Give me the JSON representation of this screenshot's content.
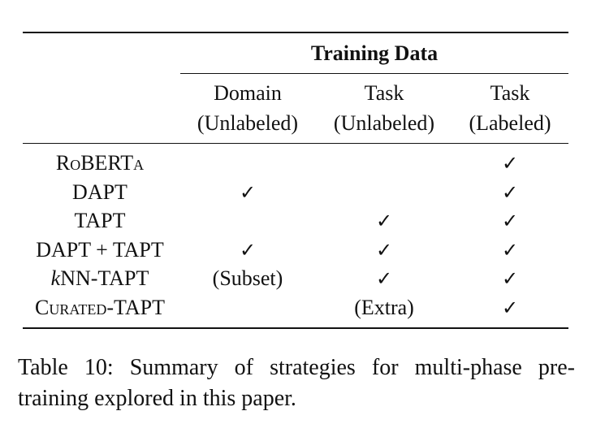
{
  "table": {
    "group_header": "Training Data",
    "columns": [
      {
        "line1": "Domain",
        "line2": "(Unlabeled)"
      },
      {
        "line1": "Task",
        "line2": "(Unlabeled)"
      },
      {
        "line1": "Task",
        "line2": "(Labeled)"
      }
    ],
    "rows": [
      {
        "label": "RoBERTa",
        "cells": [
          "",
          "",
          "✓"
        ]
      },
      {
        "label": "DAPT",
        "cells": [
          "✓",
          "",
          "✓"
        ]
      },
      {
        "label": "TAPT",
        "cells": [
          "",
          "✓",
          "✓"
        ]
      },
      {
        "label": "DAPT + TAPT",
        "cells": [
          "✓",
          "✓",
          "✓"
        ]
      },
      {
        "label_prefix": "k",
        "label": "NN-TAPT",
        "cells": [
          "(Subset)",
          "✓",
          "✓"
        ]
      },
      {
        "label": "Curated-TAPT",
        "cells": [
          "",
          "(Extra)",
          "✓"
        ]
      }
    ]
  },
  "caption": {
    "line1": "Table 10: Summary of strategies for multi-phase pre-",
    "line2": "training explored in this paper."
  }
}
